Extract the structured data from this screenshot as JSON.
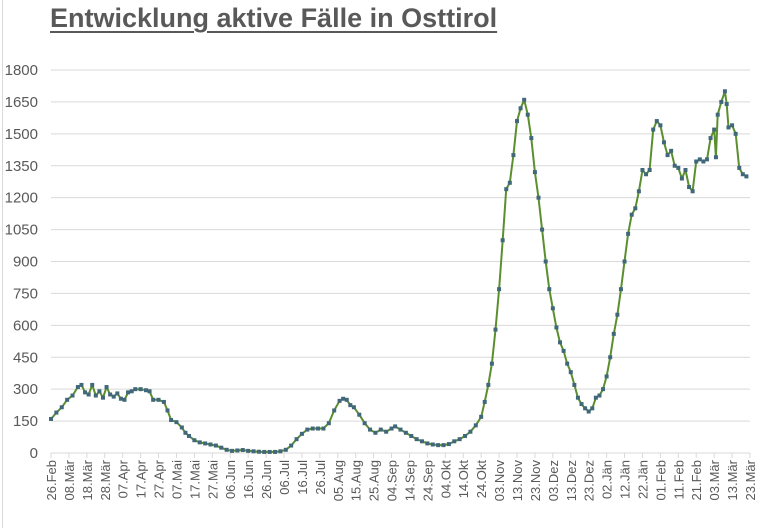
{
  "chart_data": {
    "type": "line",
    "title": "Entwicklung aktive Fälle in Osttirol",
    "xlabel": "",
    "ylabel": "",
    "ylim": [
      0,
      1800
    ],
    "yticks": [
      0,
      150,
      300,
      450,
      600,
      750,
      900,
      1050,
      1200,
      1350,
      1500,
      1650,
      1800
    ],
    "grid": true,
    "legend": "none",
    "x_tick_labels": [
      "26.Feb",
      "08.Mär",
      "18.Mär",
      "28.Mär",
      "07.Apr",
      "17.Apr",
      "27.Apr",
      "07.Mai",
      "17.Mai",
      "27.Mai",
      "06.Jun",
      "16.Jun",
      "26.Jun",
      "06.Jul",
      "16.Jul",
      "26.Jul",
      "05.Aug",
      "15.Aug",
      "25.Aug",
      "04.Sep",
      "14.Sep",
      "24.Sep",
      "04.Okt",
      "14.Okt",
      "24.Okt",
      "03.Nov",
      "13.Nov",
      "23.Nov",
      "03.Dez",
      "13.Dez",
      "23.Dez",
      "02.Jän",
      "12.Jän",
      "22.Jän",
      "01.Feb",
      "11.Feb",
      "21.Feb",
      "03.Mär",
      "13.Mär",
      "23.Mär"
    ],
    "series": [
      {
        "name": "Aktive Fälle",
        "line_color": "#5b8f2e",
        "marker_color": "#41687a",
        "points_day_value": [
          [
            0,
            160
          ],
          [
            3,
            190
          ],
          [
            6,
            215
          ],
          [
            9,
            250
          ],
          [
            12,
            270
          ],
          [
            15,
            310
          ],
          [
            17,
            320
          ],
          [
            19,
            285
          ],
          [
            21,
            275
          ],
          [
            23,
            320
          ],
          [
            25,
            270
          ],
          [
            27,
            290
          ],
          [
            29,
            260
          ],
          [
            31,
            310
          ],
          [
            33,
            275
          ],
          [
            35,
            265
          ],
          [
            37,
            280
          ],
          [
            39,
            255
          ],
          [
            41,
            250
          ],
          [
            43,
            285
          ],
          [
            45,
            290
          ],
          [
            47,
            300
          ],
          [
            50,
            300
          ],
          [
            53,
            295
          ],
          [
            55,
            290
          ],
          [
            57,
            250
          ],
          [
            60,
            250
          ],
          [
            63,
            240
          ],
          [
            65,
            200
          ],
          [
            67,
            155
          ],
          [
            70,
            145
          ],
          [
            73,
            120
          ],
          [
            75,
            95
          ],
          [
            77,
            80
          ],
          [
            80,
            60
          ],
          [
            83,
            50
          ],
          [
            86,
            45
          ],
          [
            89,
            40
          ],
          [
            92,
            35
          ],
          [
            95,
            25
          ],
          [
            98,
            15
          ],
          [
            101,
            10
          ],
          [
            104,
            12
          ],
          [
            107,
            14
          ],
          [
            110,
            10
          ],
          [
            113,
            8
          ],
          [
            116,
            6
          ],
          [
            119,
            5
          ],
          [
            122,
            5
          ],
          [
            125,
            5
          ],
          [
            128,
            8
          ],
          [
            131,
            15
          ],
          [
            134,
            35
          ],
          [
            137,
            65
          ],
          [
            140,
            90
          ],
          [
            143,
            110
          ],
          [
            146,
            115
          ],
          [
            149,
            115
          ],
          [
            152,
            115
          ],
          [
            155,
            140
          ],
          [
            158,
            200
          ],
          [
            161,
            245
          ],
          [
            163,
            255
          ],
          [
            165,
            250
          ],
          [
            167,
            225
          ],
          [
            169,
            215
          ],
          [
            172,
            180
          ],
          [
            175,
            140
          ],
          [
            178,
            110
          ],
          [
            181,
            95
          ],
          [
            184,
            110
          ],
          [
            187,
            100
          ],
          [
            190,
            115
          ],
          [
            192,
            125
          ],
          [
            195,
            110
          ],
          [
            198,
            95
          ],
          [
            201,
            80
          ],
          [
            204,
            65
          ],
          [
            207,
            55
          ],
          [
            210,
            45
          ],
          [
            213,
            40
          ],
          [
            216,
            37
          ],
          [
            219,
            37
          ],
          [
            222,
            42
          ],
          [
            225,
            55
          ],
          [
            228,
            65
          ],
          [
            231,
            80
          ],
          [
            234,
            100
          ],
          [
            237,
            130
          ],
          [
            240,
            170
          ],
          [
            242,
            240
          ],
          [
            244,
            320
          ],
          [
            246,
            420
          ],
          [
            248,
            580
          ],
          [
            250,
            770
          ],
          [
            252,
            1000
          ],
          [
            254,
            1240
          ],
          [
            256,
            1270
          ],
          [
            258,
            1400
          ],
          [
            260,
            1560
          ],
          [
            262,
            1620
          ],
          [
            264,
            1660
          ],
          [
            266,
            1590
          ],
          [
            268,
            1480
          ],
          [
            270,
            1320
          ],
          [
            272,
            1200
          ],
          [
            274,
            1050
          ],
          [
            276,
            900
          ],
          [
            278,
            770
          ],
          [
            280,
            680
          ],
          [
            282,
            590
          ],
          [
            284,
            520
          ],
          [
            286,
            480
          ],
          [
            288,
            420
          ],
          [
            290,
            380
          ],
          [
            292,
            320
          ],
          [
            294,
            260
          ],
          [
            296,
            230
          ],
          [
            298,
            210
          ],
          [
            300,
            195
          ],
          [
            302,
            210
          ],
          [
            304,
            260
          ],
          [
            306,
            270
          ],
          [
            308,
            300
          ],
          [
            310,
            360
          ],
          [
            312,
            450
          ],
          [
            314,
            560
          ],
          [
            316,
            650
          ],
          [
            318,
            770
          ],
          [
            320,
            900
          ],
          [
            322,
            1030
          ],
          [
            324,
            1120
          ],
          [
            326,
            1150
          ],
          [
            328,
            1230
          ],
          [
            330,
            1330
          ],
          [
            332,
            1310
          ],
          [
            334,
            1330
          ],
          [
            336,
            1520
          ],
          [
            338,
            1560
          ],
          [
            340,
            1540
          ],
          [
            342,
            1460
          ],
          [
            344,
            1400
          ],
          [
            346,
            1420
          ],
          [
            348,
            1350
          ],
          [
            350,
            1340
          ],
          [
            352,
            1290
          ],
          [
            354,
            1330
          ],
          [
            356,
            1250
          ],
          [
            358,
            1230
          ],
          [
            360,
            1370
          ],
          [
            362,
            1380
          ],
          [
            364,
            1370
          ],
          [
            366,
            1380
          ],
          [
            368,
            1480
          ],
          [
            370,
            1520
          ],
          [
            371,
            1390
          ],
          [
            372,
            1590
          ],
          [
            374,
            1650
          ],
          [
            376,
            1700
          ],
          [
            377,
            1640
          ],
          [
            378,
            1530
          ],
          [
            380,
            1540
          ],
          [
            382,
            1500
          ],
          [
            384,
            1340
          ],
          [
            386,
            1310
          ],
          [
            388,
            1300
          ]
        ]
      }
    ]
  }
}
